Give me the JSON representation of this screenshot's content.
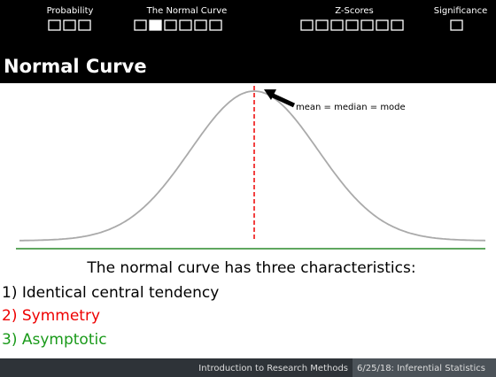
{
  "header": {
    "sections": [
      "Probability",
      "The Normal Curve",
      "Z-Scores",
      "Significance"
    ]
  },
  "title": "Normal Curve",
  "figure": {
    "annotation": "mean = median = mode"
  },
  "body": {
    "intro": "The normal curve has three characteristics:",
    "items": [
      "1) Identical central tendency",
      "2) Symmetry",
      "3) Asymptotic"
    ]
  },
  "footer": {
    "course": "Introduction to Research Methods",
    "session": "6/25/18: Inferential Statistics"
  }
}
